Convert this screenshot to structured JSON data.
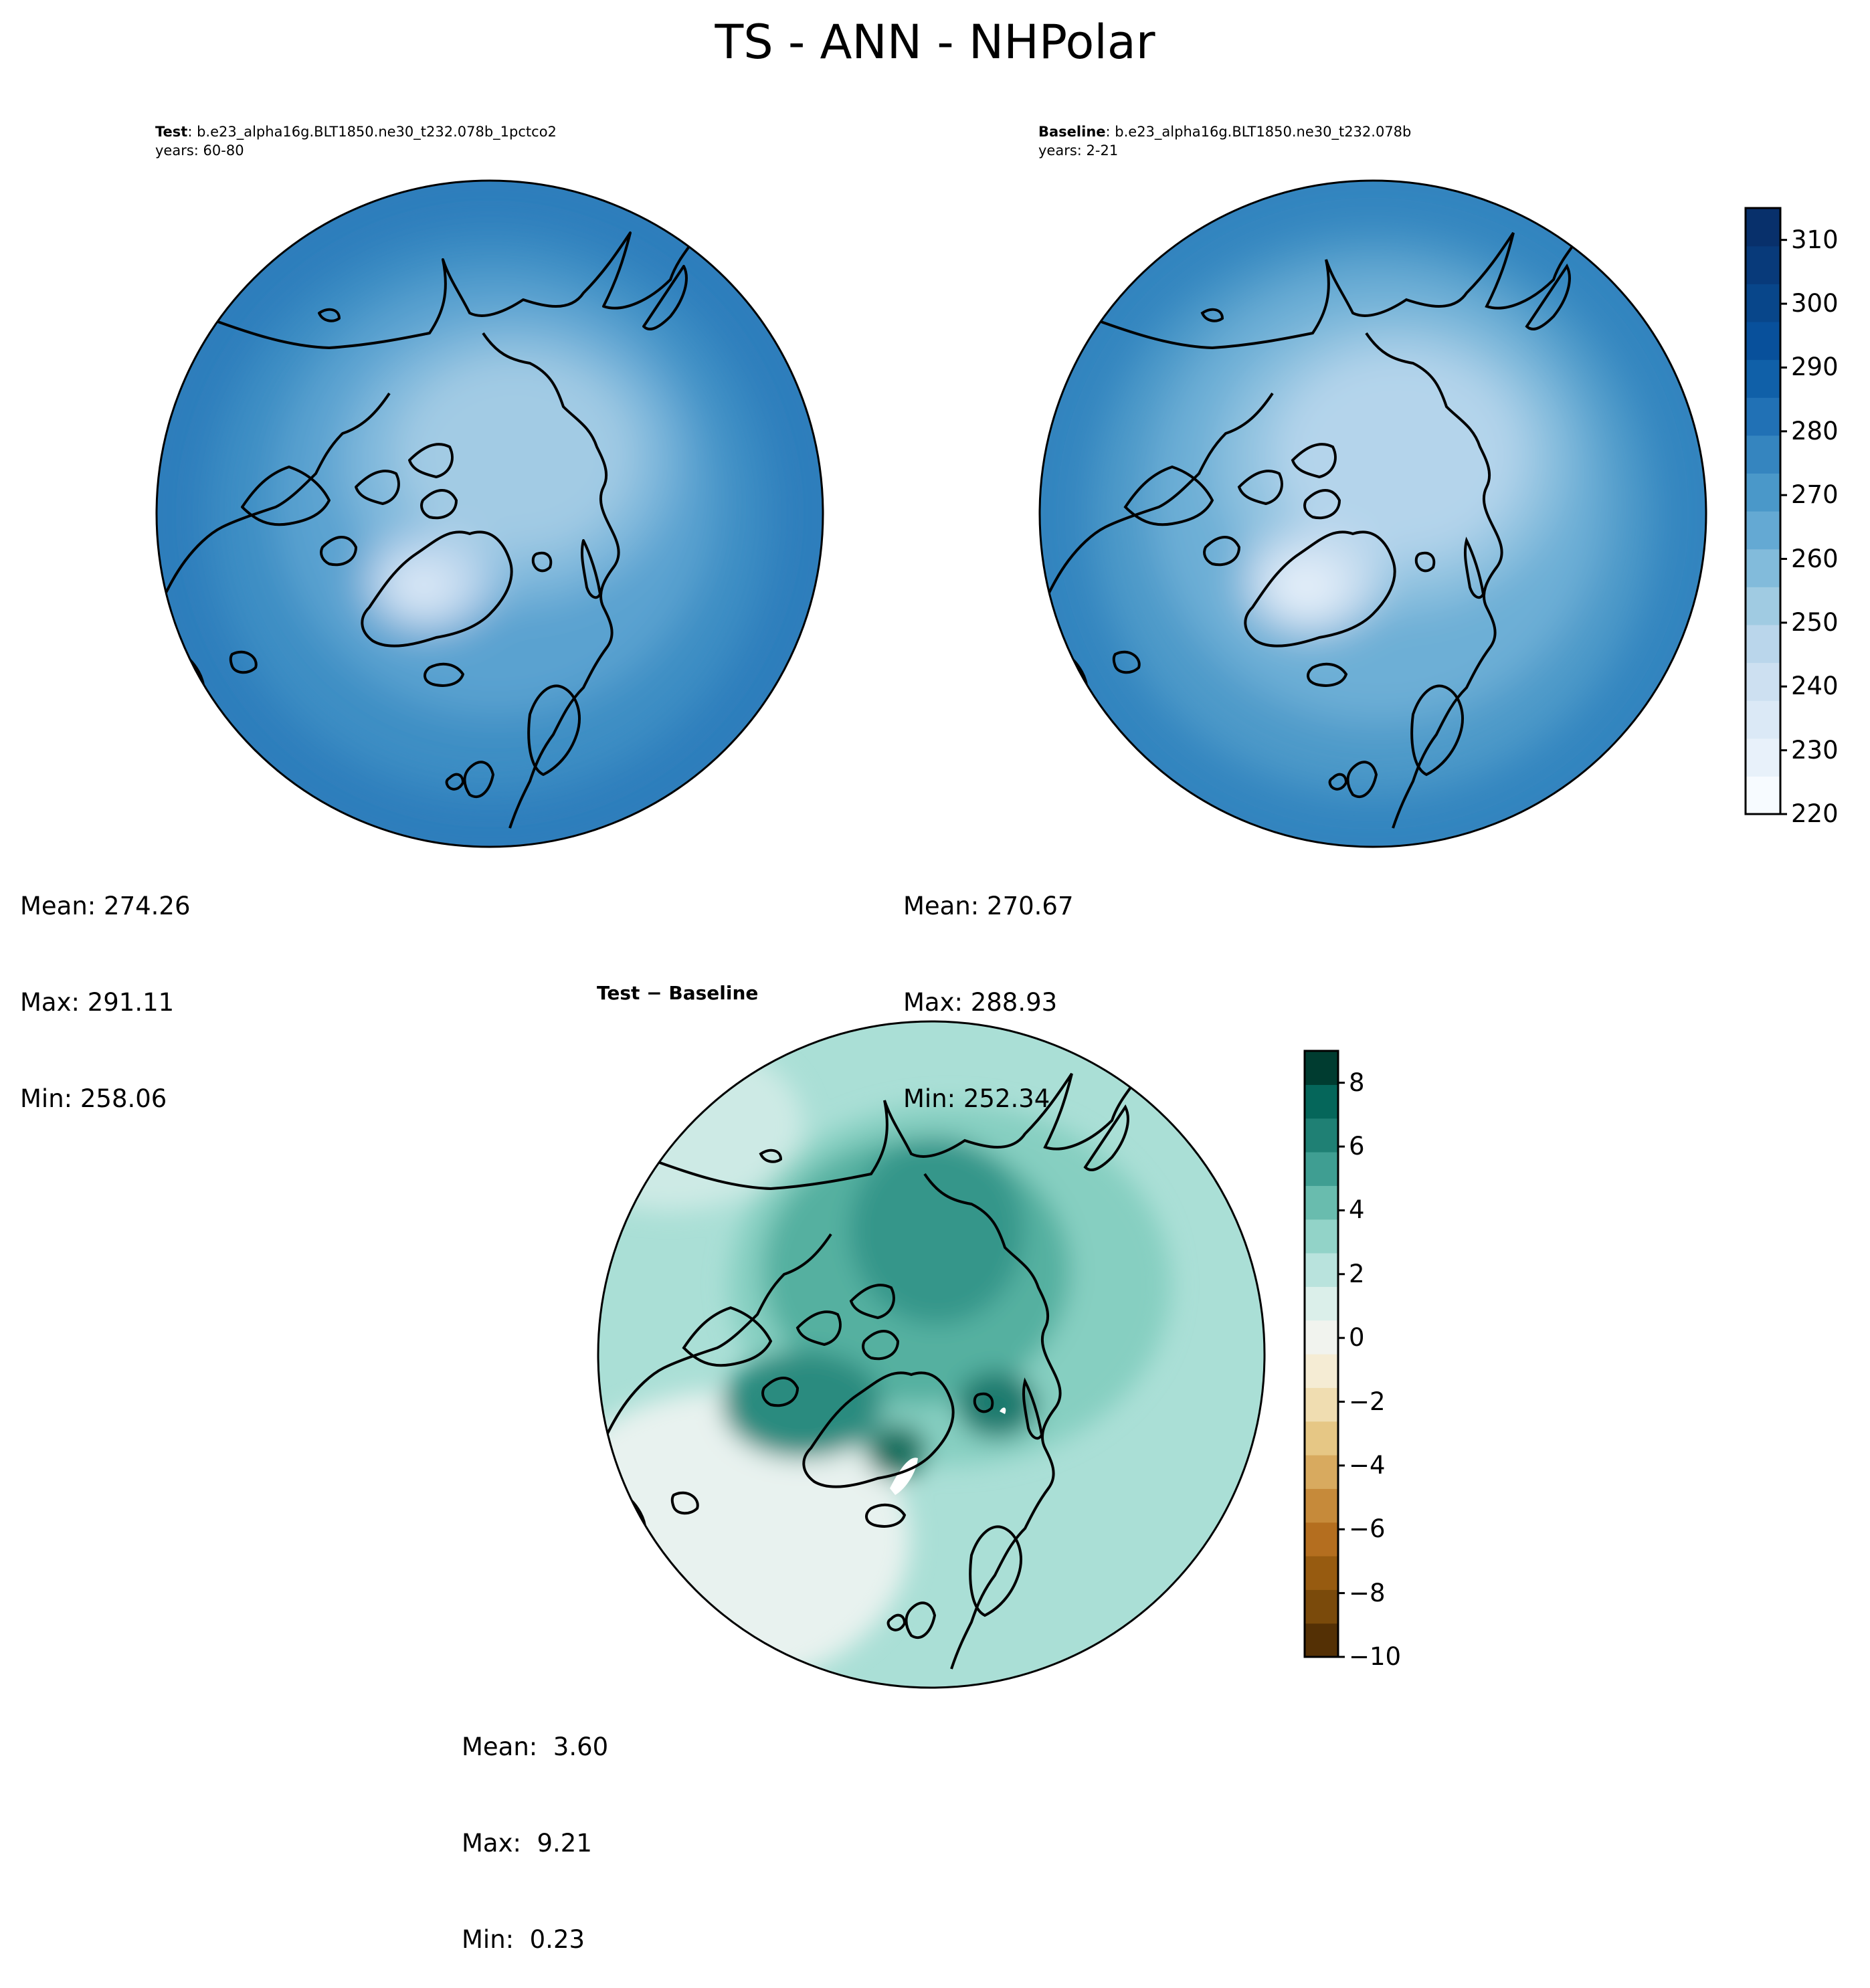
{
  "title": "TS - ANN - NHPolar",
  "panels": [
    {
      "id": "test",
      "label_bold": "Test",
      "label_rest": ": b.e23_alpha16g.BLT1850.ne30_t232.078b_1pctco2",
      "years": "years: 60-80",
      "stats": {
        "mean": "Mean: 274.26",
        "max": "Max: 291.11",
        "min": "Min: 258.06"
      }
    },
    {
      "id": "baseline",
      "label_bold": "Baseline",
      "label_rest": ": b.e23_alpha16g.BLT1850.ne30_t232.078b",
      "years": "years: 2-21",
      "stats": {
        "mean": "Mean: 270.67",
        "max": "Max: 288.93",
        "min": "Min: 252.34"
      }
    },
    {
      "id": "difference",
      "title": "Test − Baseline",
      "stats": {
        "mean": "Mean:  3.60",
        "max": "Max:  9.21",
        "min": "Min:  0.23"
      }
    }
  ],
  "colorbars": {
    "absolute": {
      "ticks": [
        "220",
        "230",
        "240",
        "250",
        "260",
        "270",
        "280",
        "290",
        "300",
        "310"
      ],
      "range": [
        220,
        315
      ],
      "colormap": [
        "#f7fbff",
        "#e8f1fa",
        "#dbe9f6",
        "#cde0f1",
        "#bad6eb",
        "#a0cbe2",
        "#82bbdb",
        "#64a9d3",
        "#4a98c9",
        "#3585bf",
        "#2171b5",
        "#1060a8",
        "#08509b",
        "#08468a",
        "#083a7a",
        "#08306b"
      ]
    },
    "difference": {
      "ticks": [
        "8",
        "6",
        "4",
        "2",
        "0",
        "−2",
        "−4",
        "−6",
        "−8",
        "−10"
      ],
      "range": [
        -10,
        9
      ],
      "colormap": [
        "#543005",
        "#7a4a0b",
        "#975b10",
        "#b46e1f",
        "#c68a3a",
        "#d8aa5f",
        "#e6c785",
        "#f0ddb1",
        "#f5ecd4",
        "#f1f3ee",
        "#dbefea",
        "#b9e3dd",
        "#92d3c8",
        "#69bcae",
        "#3f9e92",
        "#1f8074",
        "#05665a",
        "#003c30"
      ]
    }
  }
}
